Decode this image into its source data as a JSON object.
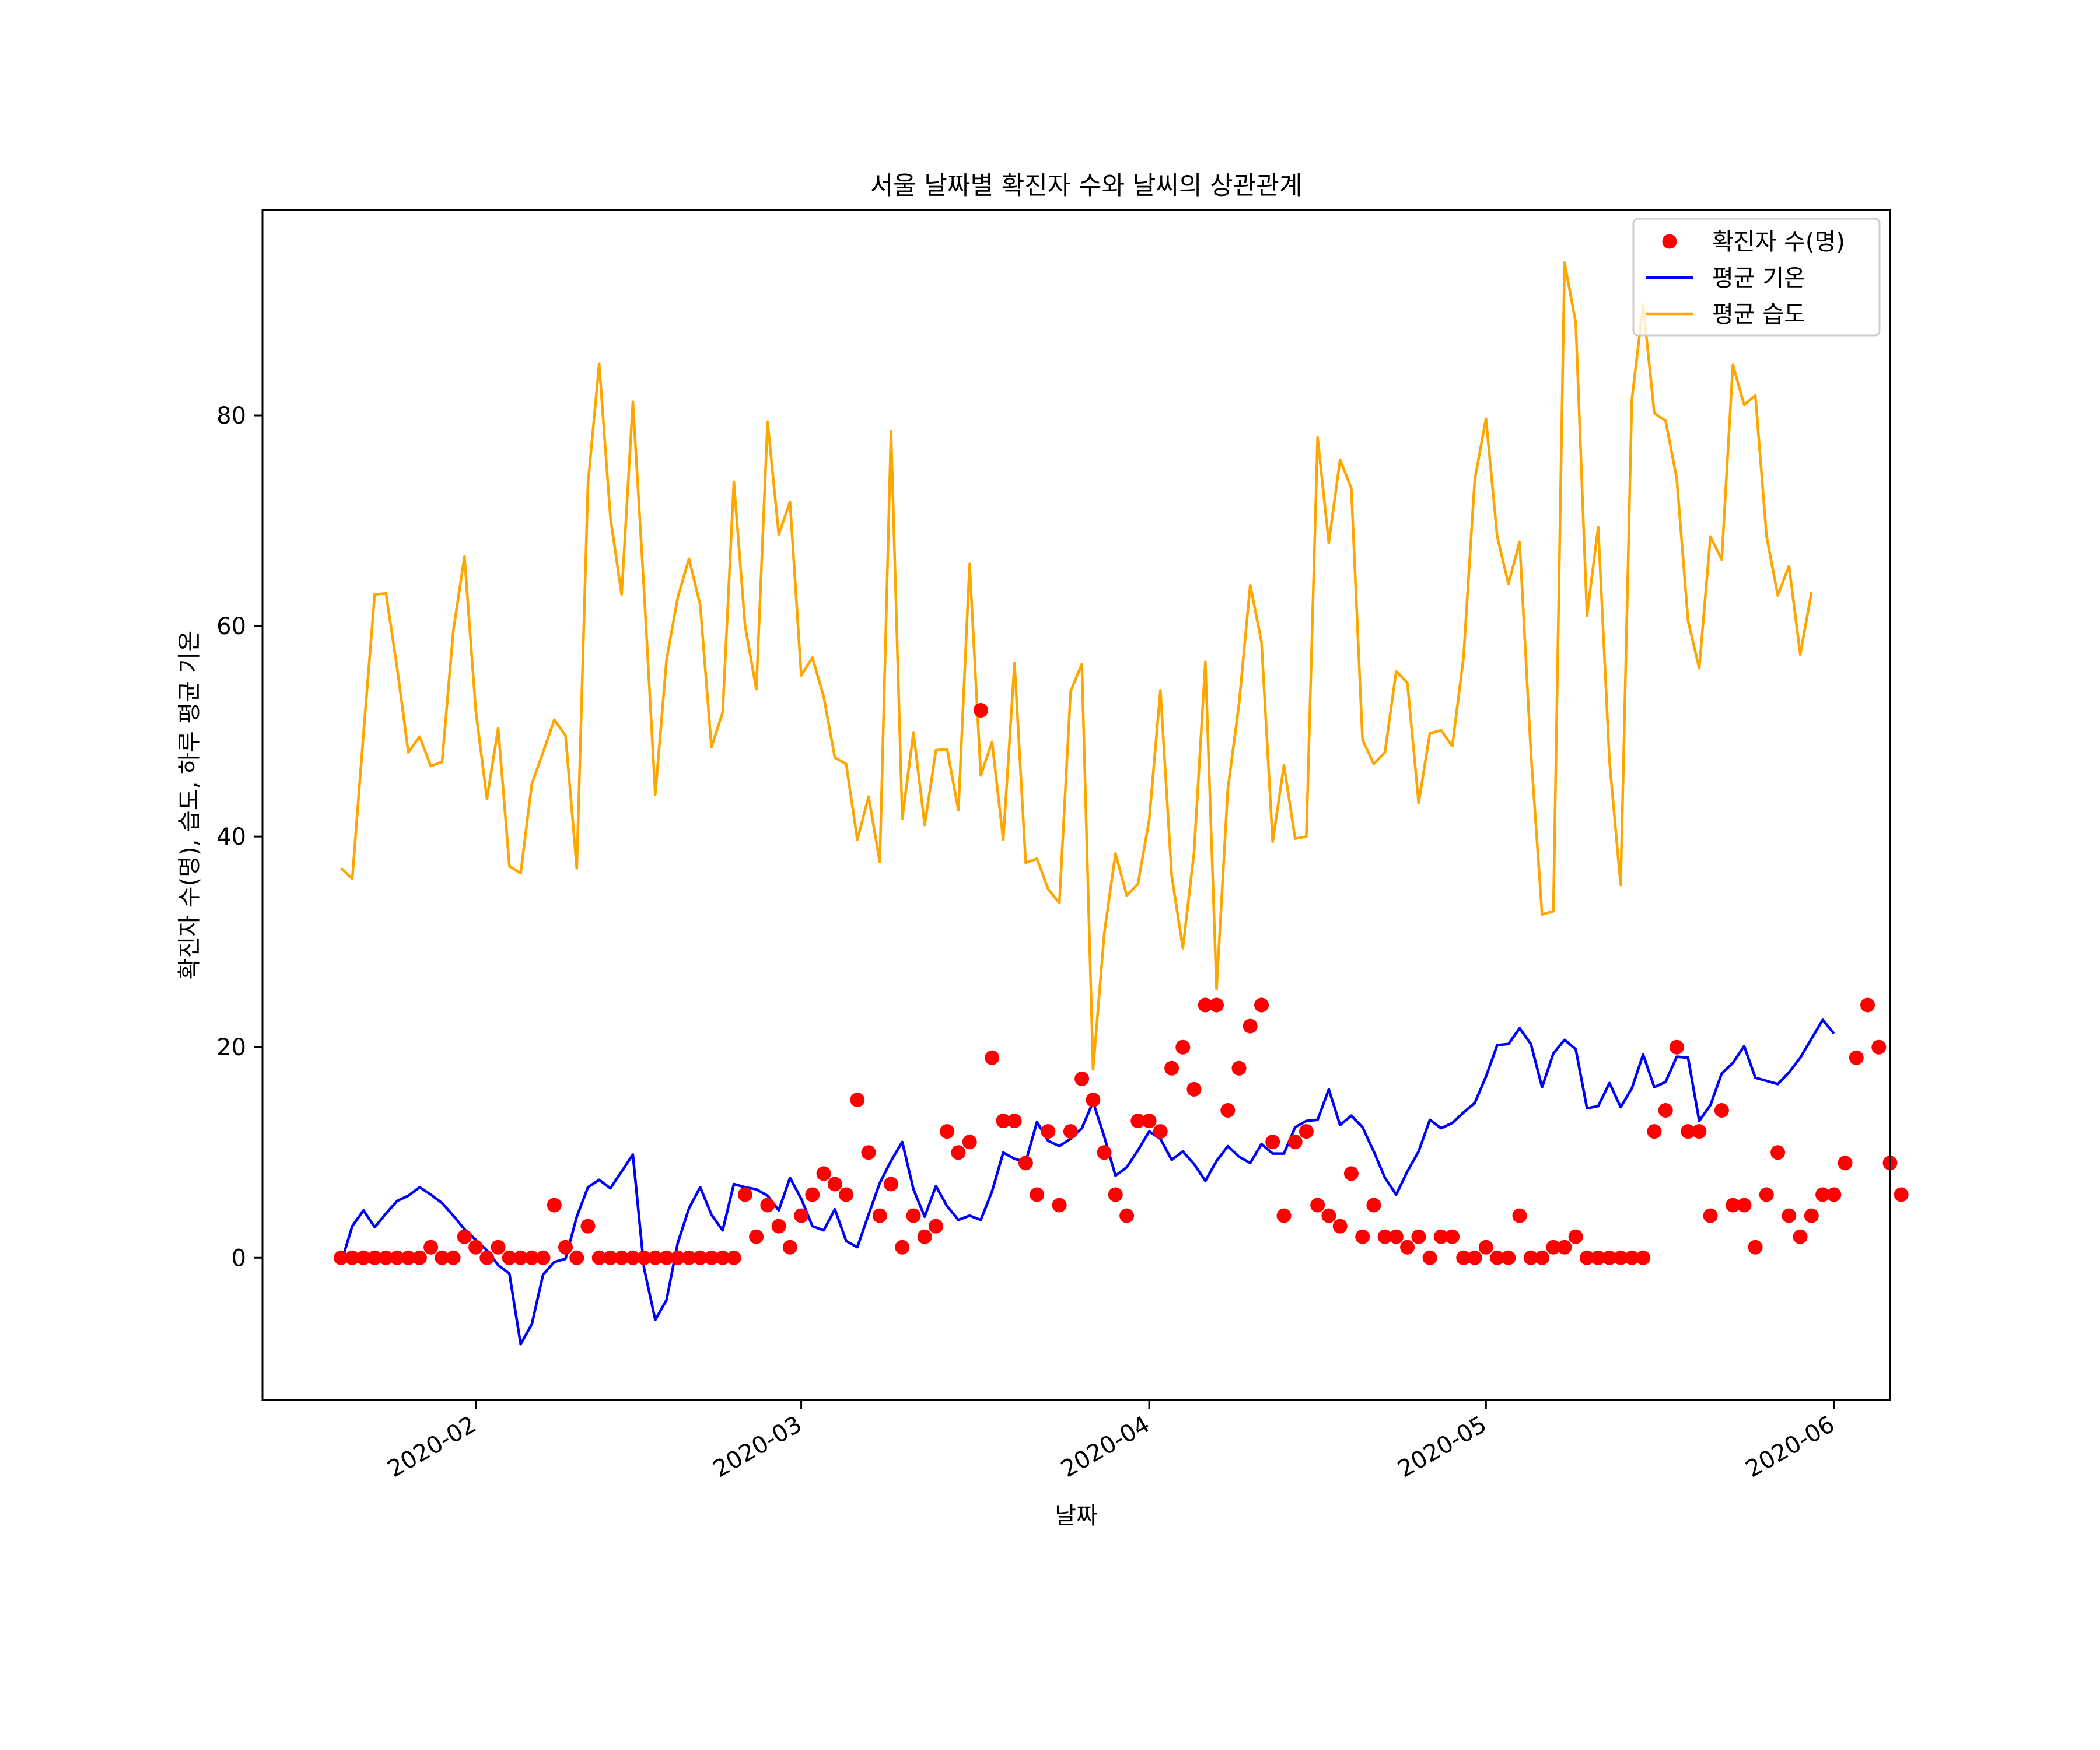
{
  "chart_data": {
    "type": "line",
    "title": "서울 날짜별 확진자 수와 날씨의 상관관계",
    "xlabel": "날짜",
    "ylabel": "확진자 수(명), 습도, 하루 평균 기온",
    "x_range": [
      "2020-01-13",
      "2020-06-06"
    ],
    "ylim": [
      -13.5,
      99.5
    ],
    "x_ticks": [
      "2020-02-01",
      "2020-03-01",
      "2020-04-01",
      "2020-05-01",
      "2020-06-01"
    ],
    "x_tick_labels": [
      "2020-02",
      "2020-03",
      "2020-04",
      "2020-05",
      "2020-06"
    ],
    "y_ticks": [
      0,
      20,
      40,
      60,
      80
    ],
    "y_tick_labels": [
      "0",
      "20",
      "40",
      "60",
      "80"
    ],
    "grid": false,
    "legend_position": "upper right",
    "start_date": "2020-01-20",
    "series": [
      {
        "name": "확진자 수(명)",
        "kind": "scatter",
        "color": "#ff0000",
        "values": [
          0,
          0,
          0,
          0,
          0,
          0,
          0,
          0,
          1,
          0,
          0,
          2,
          1,
          0,
          1,
          0,
          0,
          0,
          0,
          5,
          1,
          0,
          3,
          0,
          0,
          0,
          0,
          0,
          0,
          0,
          0,
          0,
          0,
          0,
          0,
          0,
          6,
          2,
          5,
          3,
          1,
          4,
          6,
          8,
          7,
          6,
          15,
          10,
          4,
          7,
          1,
          4,
          2,
          3,
          12,
          10,
          11,
          52,
          19,
          13,
          13,
          9,
          6,
          12,
          5,
          12,
          17,
          15,
          10,
          6,
          4,
          13,
          13,
          12,
          18,
          20,
          16,
          24,
          24,
          14,
          18,
          22,
          24,
          11,
          4,
          11,
          12,
          5,
          4,
          3,
          8,
          2,
          5,
          2,
          2,
          1,
          2,
          0,
          2,
          2,
          0,
          0,
          1,
          0,
          0,
          4,
          0,
          0,
          1,
          1,
          2,
          0,
          0,
          0,
          0,
          0,
          0,
          12,
          14,
          20,
          12,
          12,
          4,
          14,
          5,
          5,
          1,
          6,
          10,
          4,
          2,
          4,
          6,
          6,
          9,
          19,
          24,
          20,
          9,
          6
        ]
      },
      {
        "name": "평균 기온",
        "kind": "line",
        "color": "#0000ff",
        "values": [
          -0.5,
          3.0,
          4.5,
          2.9,
          4.2,
          5.4,
          5.9,
          6.7,
          6.0,
          5.2,
          4.0,
          2.7,
          1.7,
          0.7,
          -0.7,
          -1.5,
          -8.2,
          -6.3,
          -1.6,
          -0.4,
          -0.1,
          3.9,
          6.7,
          7.4,
          6.6,
          8.2,
          9.8,
          -1.0,
          -5.9,
          -4.0,
          1.4,
          4.7,
          6.7,
          4.1,
          2.6,
          7.0,
          6.7,
          6.5,
          5.9,
          4.5,
          7.6,
          5.6,
          3.0,
          2.6,
          4.6,
          1.6,
          1.0,
          4.1,
          7.1,
          9.2,
          11.0,
          6.5,
          3.9,
          6.8,
          4.9,
          3.6,
          4.0,
          3.6,
          6.3,
          10.0,
          9.4,
          9.1,
          12.9,
          11.1,
          10.6,
          11.3,
          12.3,
          14.8,
          11.5,
          7.8,
          8.6,
          10.2,
          12.0,
          11.3,
          9.3,
          10.1,
          8.9,
          7.3,
          9.2,
          10.6,
          9.6,
          9.0,
          10.8,
          9.9,
          9.9,
          12.4,
          13.0,
          13.1,
          16.0,
          12.6,
          13.5,
          12.4,
          10.1,
          7.6,
          6.0,
          8.2,
          10.1,
          13.1,
          12.3,
          12.8,
          13.8,
          14.7,
          17.2,
          20.2,
          20.3,
          21.8,
          20.3,
          16.2,
          19.4,
          20.7,
          19.8,
          14.2,
          14.4,
          16.6,
          14.3,
          16.1,
          19.3,
          16.2,
          16.7,
          19.1,
          19.0,
          13.0,
          14.5,
          17.5,
          18.5,
          20.1,
          17.1,
          16.8,
          16.5,
          17.6,
          19.0,
          20.8,
          22.6,
          21.3
        ]
      },
      {
        "name": "평균 습도",
        "kind": "line",
        "color": "#ffa500",
        "values": [
          37.0,
          36.0,
          49.8,
          63.0,
          63.1,
          56.0,
          48.0,
          49.5,
          46.7,
          47.1,
          59.5,
          66.6,
          52.0,
          43.6,
          50.3,
          37.2,
          36.5,
          45.0,
          48.0,
          51.1,
          49.6,
          37.0,
          73.5,
          84.9,
          70.3,
          63.0,
          81.3,
          63.3,
          44.0,
          56.8,
          62.7,
          66.4,
          62.0,
          48.5,
          51.8,
          73.7,
          60.0,
          54.0,
          79.4,
          68.7,
          71.8,
          55.3,
          57.0,
          53.3,
          47.5,
          46.9,
          39.7,
          43.8,
          37.6,
          78.5,
          41.7,
          49.9,
          41.1,
          48.2,
          48.3,
          42.5,
          65.9,
          45.8,
          49.0,
          39.7,
          56.5,
          37.5,
          37.9,
          35.0,
          33.7,
          53.8,
          56.4,
          17.9,
          30.8,
          38.4,
          34.4,
          35.5,
          41.6,
          53.9,
          36.3,
          29.4,
          38.5,
          56.6,
          25.5,
          44.5,
          52.6,
          63.9,
          58.5,
          39.5,
          46.8,
          39.8,
          40.0,
          77.9,
          67.9,
          75.8,
          73.1,
          49.2,
          46.9,
          48.0,
          55.7,
          54.6,
          43.2,
          49.8,
          50.1,
          48.6,
          57.0,
          73.9,
          79.7,
          68.5,
          64.0,
          68.0,
          48.0,
          32.6,
          32.9,
          94.5,
          88.8,
          61.0,
          69.4,
          47.2,
          35.4,
          81.5,
          90.5,
          80.2,
          79.5,
          74.0,
          60.5,
          56.0,
          68.5,
          66.3,
          84.8,
          81.0,
          81.9,
          68.5,
          62.9,
          65.7,
          57.3,
          63.2
        ]
      }
    ]
  }
}
